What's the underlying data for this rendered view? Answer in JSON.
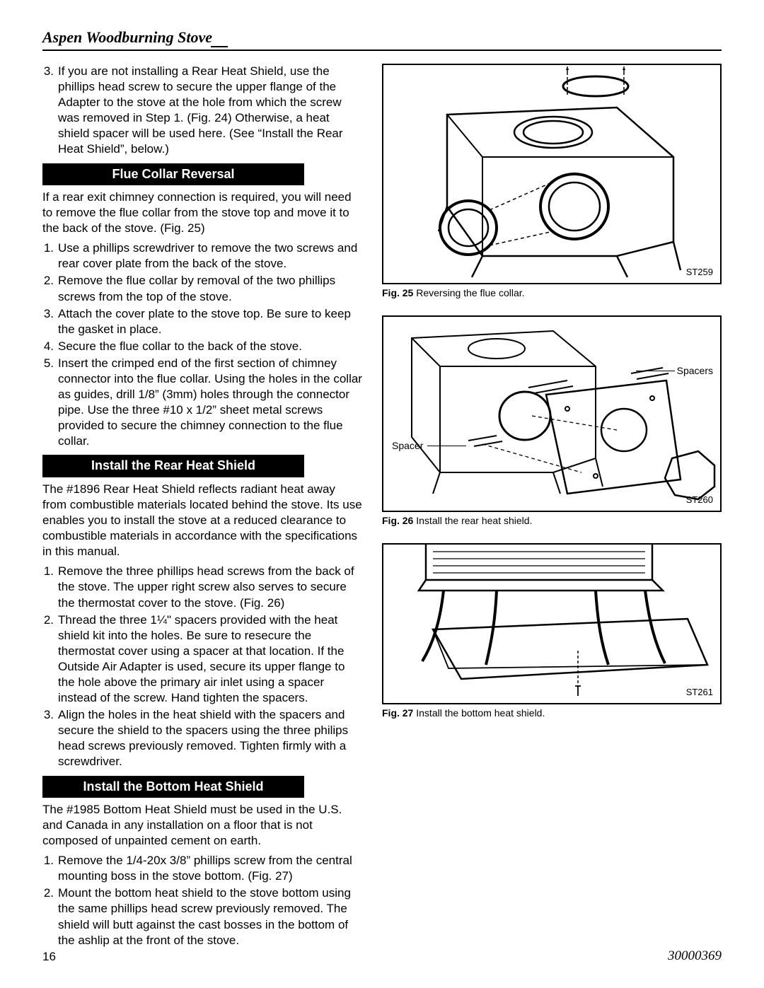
{
  "header": {
    "title": "Aspen Woodburning Stove"
  },
  "left": {
    "intro_item": {
      "n": "3.",
      "t": "If you are not installing a Rear Heat Shield, use the phillips head screw to secure the upper flange of the Adapter to the stove at the hole from which the screw was removed in Step 1. (Fig. 24) Otherwise, a heat shield spacer will be used here. (See “Install the Rear Heat Shield”, below.)"
    },
    "sec1": {
      "heading": "Flue Collar Reversal",
      "intro": "If a rear exit chimney connection is required, you will need to remove the flue collar from the stove top and move it to the back of the stove. (Fig. 25)",
      "items": [
        {
          "n": "1.",
          "t": "Use a phillips screwdriver to remove the two screws and rear cover plate from the back of the stove."
        },
        {
          "n": "2.",
          "t": "Remove the flue collar by removal of the two phillips screws from the top of the stove."
        },
        {
          "n": "3.",
          "t": "Attach the cover plate to the stove top. Be sure to keep the gasket in place."
        },
        {
          "n": "4.",
          "t": "Secure the flue collar to the back of the stove."
        },
        {
          "n": "5.",
          "t": "Insert the crimped end of the first section of chimney connector into the flue collar. Using the holes in the collar as guides, drill 1/8” (3mm) holes through the connector pipe. Use the three #10 x 1/2” sheet metal screws provided to secure the chimney connection to the flue collar."
        }
      ]
    },
    "sec2": {
      "heading": "Install the Rear Heat Shield",
      "intro": "The #1896 Rear Heat Shield reflects radiant heat away from combustible materials located behind the stove. Its use enables you to install the stove at a reduced clearance to combustible materials in accordance with the specifications in this manual.",
      "items": [
        {
          "n": "1.",
          "t": "Remove the three phillips head screws from the back of the stove. The upper right screw also serves to secure the thermostat cover to the stove. (Fig. 26)"
        },
        {
          "n": "2.",
          "t": "Thread the three 1¼\" spacers provided with the heat shield kit into the holes. Be sure to resecure the thermostat cover using a spacer at that location. If the Outside Air Adapter is used, secure its upper flange to the hole above the primary air inlet using a spacer instead of the screw. Hand tighten the spacers."
        },
        {
          "n": "3.",
          "t": "Align the holes in the heat shield with the spacers and secure the shield to the spacers using the three philips head screws previously removed. Tighten firmly with a screwdriver."
        }
      ]
    },
    "sec3": {
      "heading": "Install the Bottom Heat Shield",
      "intro": "The #1985 Bottom Heat Shield must be used in the U.S. and Canada in any installation on a floor that is not composed of unpainted cement on earth.",
      "items": [
        {
          "n": "1.",
          "t": "Remove the 1/4-20x 3/8” phillips screw from the central mounting boss in the stove bottom. (Fig. 27)"
        },
        {
          "n": "2.",
          "t": "Mount the bottom heat shield to the stove bottom using the same phillips head screw previously removed. The shield will butt against the cast bosses in the bottom of the ashlip at the front of the stove."
        }
      ]
    }
  },
  "figures": {
    "f1": {
      "code": "ST259",
      "caption_b": "Fig. 25",
      "caption_t": "  Reversing the flue collar."
    },
    "f2": {
      "code": "ST260",
      "caption_b": "Fig. 26",
      "caption_t": " Install the rear heat shield.",
      "label_spacers": "Spacers",
      "label_spacer": "Spacer"
    },
    "f3": {
      "code": "ST261",
      "caption_b": "Fig. 27",
      "caption_t": " Install the bottom heat shield."
    }
  },
  "footer": {
    "page": "16",
    "doc": "30000369"
  }
}
